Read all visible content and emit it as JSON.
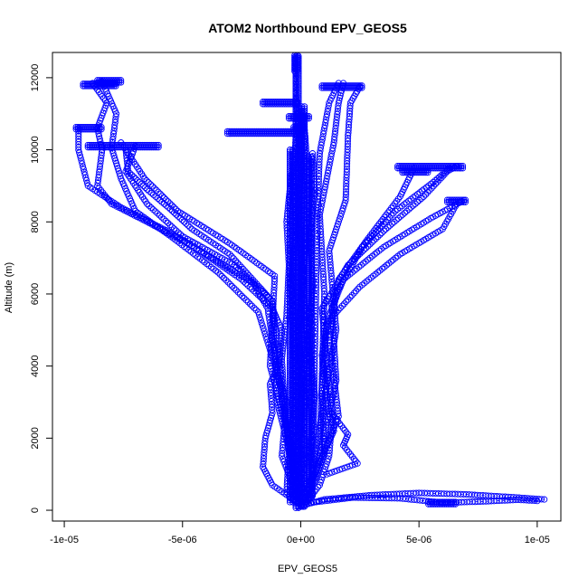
{
  "chart_data": {
    "type": "scatter",
    "title": "ATOM2 Northbound EPV_GEOS5",
    "xlabel": "EPV_GEOS5",
    "ylabel": "Altitude (m)",
    "xlim": [
      -1.05e-05,
      1.1e-05
    ],
    "ylim": [
      -300,
      12700
    ],
    "x_ticks": [
      {
        "value": -1e-05,
        "label": "-1e-05"
      },
      {
        "value": -5e-06,
        "label": "-5e-06"
      },
      {
        "value": 0,
        "label": "0e+00"
      },
      {
        "value": 5e-06,
        "label": "5e-06"
      },
      {
        "value": 1e-05,
        "label": "1e-05"
      }
    ],
    "y_ticks": [
      {
        "value": 0,
        "label": "0"
      },
      {
        "value": 2000,
        "label": "2000"
      },
      {
        "value": 4000,
        "label": "4000"
      },
      {
        "value": 6000,
        "label": "6000"
      },
      {
        "value": 8000,
        "label": "8000"
      },
      {
        "value": 10000,
        "label": "10000"
      },
      {
        "value": 12000,
        "label": "12000"
      }
    ],
    "grid": false,
    "legend": "none",
    "marker_color": "#0000ff",
    "traces": [
      {
        "points": [
          [
            -1e-07,
            100
          ],
          [
            -2e-07,
            800
          ],
          [
            -1e-07,
            2000
          ],
          [
            1e-07,
            3500
          ],
          [
            -1e-07,
            5000
          ],
          [
            1e-07,
            6500
          ],
          [
            -1e-07,
            8000
          ],
          [
            0,
            9500
          ],
          [
            -1e-07,
            10500
          ],
          [
            -2e-07,
            11500
          ],
          [
            -2e-07,
            12600
          ]
        ]
      },
      {
        "points": [
          [
            2e-07,
            200
          ],
          [
            1e-07,
            1500
          ],
          [
            2e-07,
            3000
          ],
          [
            3e-07,
            4500
          ],
          [
            1e-07,
            6000
          ],
          [
            2e-07,
            7500
          ],
          [
            3e-07,
            9000
          ],
          [
            2e-07,
            10300
          ],
          [
            1e-07,
            11000
          ]
        ]
      },
      {
        "points": [
          [
            -3e-07,
            300
          ],
          [
            -4e-07,
            1800
          ],
          [
            -2e-07,
            3300
          ],
          [
            -3e-07,
            4800
          ],
          [
            -4e-07,
            6300
          ],
          [
            -2e-07,
            7800
          ],
          [
            -3e-07,
            9200
          ],
          [
            -2e-07,
            10500
          ]
        ]
      },
      {
        "points": [
          [
            5e-07,
            400
          ],
          [
            4e-07,
            1700
          ],
          [
            6e-07,
            3200
          ],
          [
            3e-07,
            4700
          ],
          [
            5e-07,
            6200
          ],
          [
            4e-07,
            7700
          ],
          [
            6e-07,
            8800
          ],
          [
            5e-07,
            9900
          ]
        ]
      },
      {
        "points": [
          [
            -6e-07,
            500
          ],
          [
            -5e-07,
            1600
          ],
          [
            -7e-07,
            3000
          ],
          [
            -8e-07,
            4200
          ],
          [
            -6e-07,
            5400
          ],
          [
            -5e-07,
            6800
          ],
          [
            -6e-07,
            8000
          ],
          [
            -4e-07,
            9300
          ]
        ]
      },
      {
        "points": [
          [
            0,
            150
          ],
          [
            -1.2e-06,
            700
          ],
          [
            -1.6e-06,
            1200
          ],
          [
            -1.5e-06,
            2000
          ],
          [
            -1.2e-06,
            2700
          ],
          [
            -1.3e-06,
            3500
          ],
          [
            -9e-07,
            4100
          ],
          [
            -8e-07,
            5000
          ],
          [
            -1.2e-06,
            5600
          ],
          [
            -2.5e-06,
            6400
          ],
          [
            -4.5e-06,
            7300
          ],
          [
            -6.5e-06,
            8000
          ],
          [
            -8e-06,
            8500
          ],
          [
            -8.6e-06,
            9000
          ],
          [
            -8.4e-06,
            10000
          ],
          [
            -8.6e-06,
            10600
          ],
          [
            -8.2e-06,
            11300
          ],
          [
            -8.8e-06,
            11850
          ]
        ]
      },
      {
        "points": [
          [
            -1e-07,
            300
          ],
          [
            -8e-07,
            1500
          ],
          [
            -6e-07,
            3000
          ],
          [
            -1.8e-06,
            5500
          ],
          [
            -3.5e-06,
            6600
          ],
          [
            -5.5e-06,
            7600
          ],
          [
            -7e-06,
            8300
          ],
          [
            -7.6e-06,
            9200
          ],
          [
            -8e-06,
            10050
          ],
          [
            -7.8e-06,
            11000
          ],
          [
            -8.4e-06,
            11900
          ]
        ]
      },
      {
        "points": [
          [
            0,
            400
          ],
          [
            -1e-06,
            3000
          ],
          [
            -1.2e-06,
            5800
          ],
          [
            -2.8e-06,
            6800
          ],
          [
            -5e-06,
            7600
          ],
          [
            -6.5e-06,
            8500
          ],
          [
            -7.4e-06,
            9400
          ],
          [
            -7e-06,
            10100
          ]
        ]
      },
      {
        "points": [
          [
            1e-07,
            500
          ],
          [
            -1.3e-06,
            4000
          ],
          [
            -1.1e-06,
            6500
          ],
          [
            -3e-06,
            7400
          ],
          [
            -5.2e-06,
            8300
          ],
          [
            -6.6e-06,
            9200
          ],
          [
            -7.6e-06,
            10200
          ]
        ]
      },
      {
        "points": [
          [
            -2e-07,
            600
          ],
          [
            -1.4e-06,
            5600
          ],
          [
            -2e-06,
            6300
          ],
          [
            -3.5e-06,
            6900
          ],
          [
            -5.5e-06,
            7700
          ],
          [
            -7.6e-06,
            8400
          ],
          [
            -9e-06,
            9000
          ],
          [
            -9.4e-06,
            10000
          ],
          [
            -9.4e-06,
            10600
          ]
        ]
      },
      {
        "points": [
          [
            -6e-07,
            2400
          ],
          [
            -1.2e-06,
            5800
          ],
          [
            -3e-06,
            7100
          ],
          [
            -4.6e-06,
            7800
          ],
          [
            -5.6e-06,
            8400
          ],
          [
            -6.5e-06,
            8900
          ],
          [
            -7.3e-06,
            9400
          ],
          [
            -7.4e-06,
            10000
          ]
        ]
      },
      {
        "points": [
          [
            1e-07,
            100
          ],
          [
            8e-07,
            700
          ],
          [
            1.2e-06,
            1500
          ],
          [
            1.3e-06,
            2300
          ],
          [
            1.1e-06,
            3200
          ],
          [
            9e-07,
            4300
          ],
          [
            1.2e-06,
            5400
          ],
          [
            1.8e-06,
            6400
          ],
          [
            3.5e-06,
            7300
          ],
          [
            5.5e-06,
            8100
          ],
          [
            6.9e-06,
            8600
          ]
        ]
      },
      {
        "points": [
          [
            3e-07,
            300
          ],
          [
            1e-06,
            1600
          ],
          [
            9e-07,
            3400
          ],
          [
            1.1e-06,
            5200
          ],
          [
            2.5e-06,
            6200
          ],
          [
            4.2e-06,
            7100
          ],
          [
            6e-06,
            7800
          ],
          [
            6.6e-06,
            8500
          ]
        ]
      },
      {
        "points": [
          [
            2e-07,
            500
          ],
          [
            1.4e-06,
            2200
          ],
          [
            1.1e-06,
            4000
          ],
          [
            9e-07,
            5600
          ],
          [
            2e-06,
            6800
          ],
          [
            3.6e-06,
            7800
          ],
          [
            5.2e-06,
            8700
          ],
          [
            6.2e-06,
            9400
          ],
          [
            6.6e-06,
            9550
          ]
        ]
      },
      {
        "points": [
          [
            4e-07,
            700
          ],
          [
            1.6e-06,
            2600
          ],
          [
            1.2e-06,
            4800
          ],
          [
            1.6e-06,
            6400
          ],
          [
            2.8e-06,
            7500
          ],
          [
            4.2e-06,
            8700
          ],
          [
            4.8e-06,
            9500
          ]
        ]
      },
      {
        "points": [
          [
            6e-07,
            900
          ],
          [
            1.5e-06,
            3600
          ],
          [
            1.3e-06,
            5800
          ],
          [
            2.6e-06,
            7300
          ],
          [
            4e-06,
            8300
          ],
          [
            5.6e-06,
            9100
          ],
          [
            6.3e-06,
            9500
          ]
        ]
      },
      {
        "points": [
          [
            3e-07,
            400
          ],
          [
            1.5e-06,
            5000
          ],
          [
            1.2e-06,
            7200
          ],
          [
            1.9e-06,
            8600
          ],
          [
            2e-06,
            10400
          ],
          [
            2.1e-06,
            11300
          ],
          [
            2.5e-06,
            11750
          ]
        ]
      },
      {
        "points": [
          [
            8e-07,
            1500
          ],
          [
            1e-06,
            6000
          ],
          [
            8e-07,
            8200
          ],
          [
            1.4e-06,
            10200
          ],
          [
            1.6e-06,
            11300
          ],
          [
            1.8e-06,
            11850
          ]
        ]
      },
      {
        "points": [
          [
            5e-07,
            600
          ],
          [
            6e-07,
            4500
          ],
          [
            7e-07,
            8000
          ],
          [
            8e-07,
            9900
          ],
          [
            1.2e-06,
            11300
          ],
          [
            1.6e-06,
            11850
          ]
        ]
      },
      {
        "points": [
          [
            -1e-07,
            100
          ],
          [
            1e-06,
            300
          ],
          [
            3e-06,
            420
          ],
          [
            5e-06,
            480
          ],
          [
            7e-06,
            440
          ],
          [
            9e-06,
            360
          ],
          [
            1.03e-05,
            300
          ]
        ]
      },
      {
        "points": [
          [
            3e-07,
            200
          ],
          [
            2.2e-06,
            350
          ],
          [
            4.2e-06,
            330
          ],
          [
            6e-06,
            210
          ],
          [
            7.6e-06,
            240
          ],
          [
            9.2e-06,
            290
          ],
          [
            1e-05,
            260
          ]
        ]
      },
      {
        "points": [
          [
            1.1e-06,
            1000
          ],
          [
            2.4e-06,
            1300
          ],
          [
            1.8e-06,
            1800
          ],
          [
            2e-06,
            2100
          ],
          [
            1.3e-06,
            2700
          ]
        ]
      }
    ],
    "levels": [
      {
        "x0": -9.5e-06,
        "x1": -8.4e-06,
        "y": 10600
      },
      {
        "x0": -9e-06,
        "x1": -6e-06,
        "y": 10100
      },
      {
        "x0": -9.2e-06,
        "x1": -7.8e-06,
        "y": 11800
      },
      {
        "x0": -8.6e-06,
        "x1": -7.6e-06,
        "y": 11900
      },
      {
        "x0": -3.1e-06,
        "x1": -1e-07,
        "y": 10480
      },
      {
        "x0": -1.6e-06,
        "x1": -1e-07,
        "y": 11300
      },
      {
        "x0": -5e-07,
        "x1": 4e-07,
        "y": 10900
      },
      {
        "x0": -3e-07,
        "x1": 2e-07,
        "y": 10600
      },
      {
        "x0": 9e-07,
        "x1": 2.6e-06,
        "y": 11750
      },
      {
        "x0": 4.1e-06,
        "x1": 6.9e-06,
        "y": 9520
      },
      {
        "x0": 4.3e-06,
        "x1": 5.4e-06,
        "y": 9400
      },
      {
        "x0": 6.2e-06,
        "x1": 7e-06,
        "y": 8580
      },
      {
        "x0": 5.4e-06,
        "x1": 6.6e-06,
        "y": 200
      }
    ],
    "columns": [
      {
        "x": -1.5e-07,
        "y0": 50,
        "y1": 12600
      },
      {
        "x": 1e-07,
        "y0": 100,
        "y1": 11200
      },
      {
        "x": -4e-07,
        "y0": 200,
        "y1": 10000
      },
      {
        "x": 4e-07,
        "y0": 300,
        "y1": 9800
      },
      {
        "x": -2e-07,
        "y0": 12150,
        "y1": 12620
      }
    ]
  }
}
